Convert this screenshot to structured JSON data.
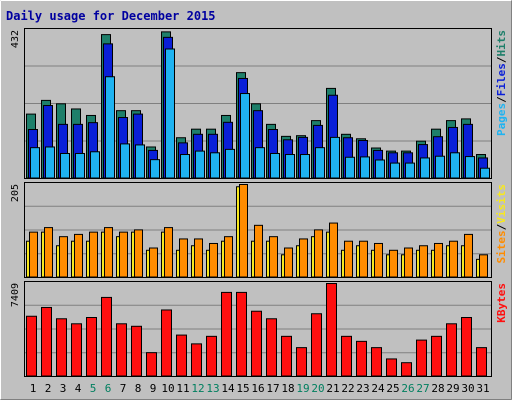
{
  "chart_data": {
    "type": "bar",
    "title": "Daily usage for December 2015",
    "categories": [
      "1",
      "2",
      "3",
      "4",
      "5",
      "6",
      "7",
      "8",
      "9",
      "10",
      "11",
      "12",
      "13",
      "14",
      "15",
      "16",
      "17",
      "18",
      "19",
      "20",
      "21",
      "22",
      "23",
      "24",
      "25",
      "26",
      "27",
      "28",
      "29",
      "30",
      "31"
    ],
    "weekend_days": [
      "5",
      "6",
      "12",
      "13",
      "19",
      "20",
      "26",
      "27"
    ],
    "panels": [
      {
        "id": "hits_files_pages",
        "ylabel_parts": [
          "Pages",
          "Files",
          "Hits"
        ],
        "ymax_label": "432",
        "ylim": [
          0,
          432
        ],
        "series": [
          {
            "name": "Hits",
            "color": "#1e7f6a",
            "values": [
              188,
              228,
              218,
              203,
              184,
              420,
              198,
              198,
              92,
              428,
              119,
              144,
              144,
              184,
              309,
              218,
              158,
              123,
              125,
              169,
              263,
              129,
              116,
              89,
              80,
              80,
              109,
              144,
              169,
              174,
              70
            ]
          },
          {
            "name": "Files",
            "color": "#0a1fd8",
            "values": [
              143,
              213,
              158,
              158,
              163,
              393,
              178,
              188,
              82,
              412,
              104,
              129,
              129,
              164,
              292,
              198,
              143,
              113,
              120,
              155,
              243,
              119,
              111,
              82,
              75,
              75,
              99,
              122,
              149,
              158,
              60
            ]
          },
          {
            "name": "Pages",
            "color": "#1fb3f1",
            "values": [
              90,
              92,
              73,
              73,
              78,
              297,
              101,
              98,
              55,
              378,
              70,
              80,
              75,
              85,
              248,
              90,
              73,
              70,
              70,
              90,
              120,
              62,
              63,
              54,
              45,
              45,
              60,
              65,
              75,
              64,
              30
            ]
          }
        ]
      },
      {
        "id": "visits_sites",
        "ylabel_parts": [
          "Sites",
          "Visits"
        ],
        "ymax_label": "205",
        "ylim": [
          0,
          205
        ],
        "series": [
          {
            "name": "Visits",
            "color": "#f7e81f",
            "values": [
              80,
              100,
              70,
              80,
              80,
              100,
              90,
              100,
              60,
              100,
              60,
              70,
              60,
              80,
              200,
              80,
              80,
              50,
              70,
              90,
              100,
              60,
              70,
              60,
              50,
              50,
              60,
              60,
              70,
              70,
              40
            ]
          },
          {
            "name": "Sites",
            "color": "#ff8c00",
            "values": [
              100,
              110,
              90,
              95,
              100,
              110,
              100,
              105,
              65,
              110,
              85,
              85,
              75,
              90,
              205,
              115,
              90,
              65,
              85,
              105,
              120,
              80,
              80,
              75,
              60,
              65,
              70,
              75,
              80,
              95,
              50
            ]
          }
        ]
      },
      {
        "id": "kbytes",
        "ylabel_parts": [
          "KBytes"
        ],
        "ymax_label": "7409",
        "ylim": [
          0,
          7409
        ],
        "series": [
          {
            "name": "KBytes",
            "color": "#ff0f0f",
            "values": [
              4800,
              5500,
              4600,
              4200,
              4700,
              6300,
              4200,
              4000,
              1900,
              5300,
              3300,
              2600,
              3200,
              6700,
              6700,
              5200,
              4600,
              3200,
              2300,
              5000,
              7409,
              3200,
              2800,
              2300,
              1400,
              1100,
              2900,
              3200,
              4200,
              4700,
              2300
            ]
          }
        ]
      }
    ]
  },
  "colors": {
    "background": "#c0c0c0",
    "gridline": "#808080",
    "title_text": "#0000a0",
    "tick_text": "#000000",
    "weekend_text": "#007f5f"
  }
}
